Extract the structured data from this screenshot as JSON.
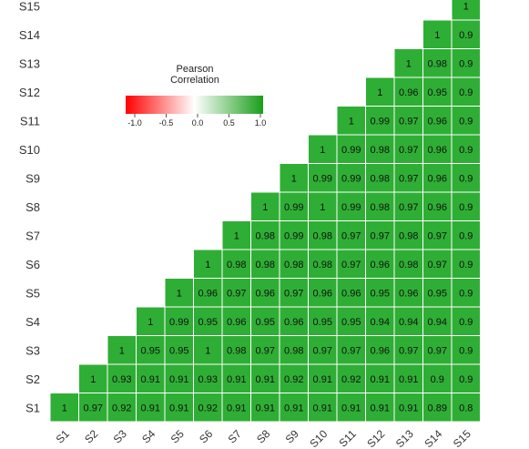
{
  "chart_data": {
    "type": "heatmap",
    "layout": "lower-triangle",
    "row_labels": [
      "S1",
      "S2",
      "S3",
      "S4",
      "S5",
      "S6",
      "S7",
      "S8",
      "S9",
      "S10",
      "S11",
      "S12",
      "S13",
      "S14",
      "S15"
    ],
    "col_labels": [
      "S1",
      "S2",
      "S3",
      "S4",
      "S5",
      "S6",
      "S7",
      "S8",
      "S9",
      "S10",
      "S11",
      "S12",
      "S13",
      "S14",
      "S15"
    ],
    "rows": [
      {
        "label": "S1",
        "values": [
          "1",
          "0.97",
          "0.92",
          "0.91",
          "0.91",
          "0.92",
          "0.91",
          "0.91",
          "0.91",
          "0.91",
          "0.91",
          "0.91",
          "0.91",
          "0.89",
          "0.8"
        ]
      },
      {
        "label": "S2",
        "values": [
          "1",
          "0.93",
          "0.91",
          "0.91",
          "0.93",
          "0.91",
          "0.91",
          "0.92",
          "0.91",
          "0.92",
          "0.91",
          "0.91",
          "0.9",
          "0.9"
        ]
      },
      {
        "label": "S3",
        "values": [
          "1",
          "0.95",
          "0.95",
          "1",
          "0.98",
          "0.97",
          "0.98",
          "0.97",
          "0.97",
          "0.96",
          "0.97",
          "0.97",
          "0.9"
        ]
      },
      {
        "label": "S4",
        "values": [
          "1",
          "0.99",
          "0.95",
          "0.96",
          "0.95",
          "0.96",
          "0.95",
          "0.95",
          "0.94",
          "0.94",
          "0.94",
          "0.9"
        ]
      },
      {
        "label": "S5",
        "values": [
          "1",
          "0.96",
          "0.97",
          "0.96",
          "0.97",
          "0.96",
          "0.96",
          "0.95",
          "0.96",
          "0.95",
          "0.9"
        ]
      },
      {
        "label": "S6",
        "values": [
          "1",
          "0.98",
          "0.98",
          "0.98",
          "0.98",
          "0.97",
          "0.96",
          "0.98",
          "0.97",
          "0.9"
        ]
      },
      {
        "label": "S7",
        "values": [
          "1",
          "0.98",
          "0.99",
          "0.98",
          "0.97",
          "0.97",
          "0.98",
          "0.97",
          "0.9"
        ]
      },
      {
        "label": "S8",
        "values": [
          "1",
          "0.99",
          "1",
          "0.99",
          "0.98",
          "0.97",
          "0.96",
          "0.9"
        ]
      },
      {
        "label": "S9",
        "values": [
          "1",
          "0.99",
          "0.99",
          "0.98",
          "0.97",
          "0.96",
          "0.9"
        ]
      },
      {
        "label": "S10",
        "values": [
          "1",
          "0.99",
          "0.98",
          "0.97",
          "0.96",
          "0.9"
        ]
      },
      {
        "label": "S11",
        "values": [
          "1",
          "0.99",
          "0.97",
          "0.96",
          "0.9"
        ]
      },
      {
        "label": "S12",
        "values": [
          "1",
          "0.96",
          "0.95",
          "0.9"
        ]
      },
      {
        "label": "S13",
        "values": [
          "1",
          "0.98",
          "0.9"
        ]
      },
      {
        "label": "S14",
        "values": [
          "1",
          "0.9"
        ]
      },
      {
        "label": "S15",
        "values": [
          "1"
        ]
      }
    ],
    "legend": {
      "title_line1": "Pearson",
      "title_line2": "Correlation",
      "ticks": [
        "-1.0",
        "-0.5",
        "0.0",
        "0.5",
        "1.0"
      ],
      "range": [
        -1.0,
        1.0
      ],
      "colors": {
        "low": "#ff0000",
        "mid": "#ffffff",
        "high": "#1a9e1a"
      }
    },
    "colors": {
      "cell": "#2fae35",
      "grid": "#ffffff",
      "label_text": "#333333",
      "cell_text": "#111111"
    }
  }
}
